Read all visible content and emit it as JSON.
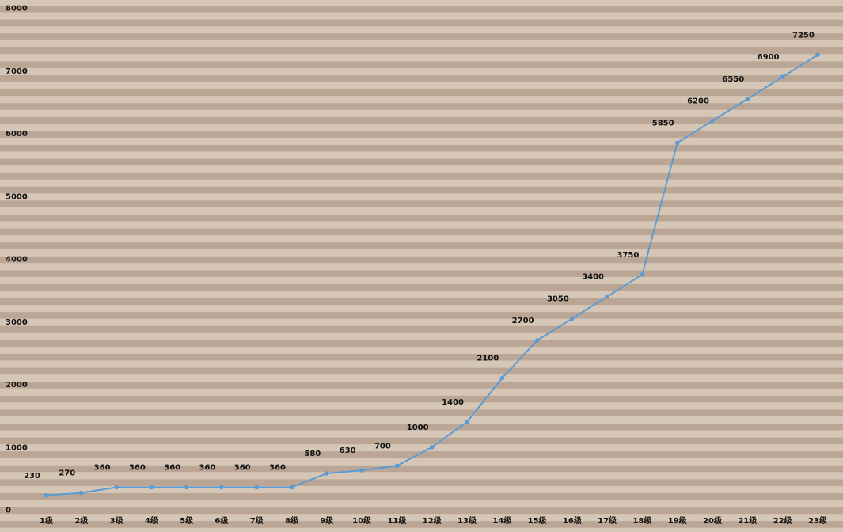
{
  "chart_data": {
    "type": "line",
    "title": "",
    "xlabel": "",
    "ylabel": "",
    "categories": [
      "1级",
      "2级",
      "3级",
      "4级",
      "5级",
      "6级",
      "7级",
      "8级",
      "9级",
      "10级",
      "11级",
      "12级",
      "13级",
      "14级",
      "15级",
      "16级",
      "17级",
      "18级",
      "19级",
      "20级",
      "21级",
      "22级",
      "23级"
    ],
    "series": [
      {
        "values": [
          230,
          270,
          360,
          360,
          360,
          360,
          360,
          360,
          580,
          630,
          700,
          1000,
          1400,
          2100,
          2700,
          3050,
          3400,
          3750,
          5850,
          6200,
          6550,
          6900,
          7250
        ],
        "color": "#5b9bd5"
      }
    ],
    "yticks": [
      0,
      1000,
      2000,
      3000,
      4000,
      5000,
      6000,
      7000,
      8000
    ],
    "ylim": [
      0,
      8000
    ],
    "grid": false,
    "legend": "none",
    "colors": {
      "background": "#d6c6b6",
      "stripe": "#bba696",
      "line": "#5b9bd5"
    }
  }
}
